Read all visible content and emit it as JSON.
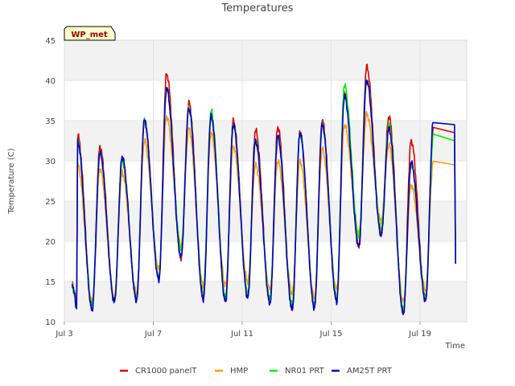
{
  "chart_data": {
    "type": "line",
    "title": "Temperatures",
    "xlabel": "Time",
    "ylabel": "Temperature (C)",
    "badge": "WP_met",
    "xlim": [
      3,
      21.1
    ],
    "ylim": [
      10,
      45
    ],
    "yticks": [
      10,
      15,
      20,
      25,
      30,
      35,
      40,
      45
    ],
    "xticks": [
      {
        "value": 3,
        "label": "Jul 3"
      },
      {
        "value": 7,
        "label": "Jul 7"
      },
      {
        "value": 11,
        "label": "Jul 11"
      },
      {
        "value": 15,
        "label": "Jul 15"
      },
      {
        "value": 19,
        "label": "Jul 19"
      }
    ],
    "series": [
      {
        "name": "CR1000 panelT",
        "color": "#dd0000",
        "max": [
          33.2,
          31.7,
          30.0,
          35.0,
          40.8,
          37.2,
          35.8,
          35.0,
          33.8,
          34.2,
          33.5,
          35.0,
          38.5,
          41.7,
          35.5,
          32.5,
          34.0
        ],
        "min": [
          11.8,
          12.6,
          12.8,
          15.5,
          18.0,
          13.0,
          12.7,
          13.3,
          12.5,
          11.8,
          12.0,
          12.8,
          19.5,
          21.0,
          11.2,
          12.8,
          17.0
        ]
      },
      {
        "name": "HMP",
        "color": "#ff9900",
        "max": [
          29.5,
          29.0,
          28.5,
          32.5,
          35.5,
          34.0,
          33.5,
          31.8,
          29.5,
          30.0,
          30.0,
          31.5,
          34.5,
          35.8,
          32.0,
          27.0,
          30.0
        ],
        "min": [
          12.5,
          13.0,
          13.5,
          16.5,
          19.5,
          14.5,
          14.5,
          15.0,
          14.0,
          13.5,
          13.0,
          14.0,
          21.0,
          22.5,
          12.5,
          14.0,
          18.0
        ]
      },
      {
        "name": "NR01 PRT",
        "color": "#00ee00",
        "max": [
          32.5,
          31.0,
          30.0,
          35.0,
          39.0,
          36.5,
          36.2,
          34.5,
          32.5,
          33.0,
          33.2,
          34.5,
          39.4,
          40.0,
          34.5,
          29.5,
          33.0
        ],
        "min": [
          12.0,
          12.6,
          13.0,
          15.5,
          19.0,
          13.5,
          13.0,
          13.5,
          12.8,
          12.2,
          12.0,
          13.0,
          20.5,
          21.5,
          11.5,
          13.0,
          17.0
        ]
      },
      {
        "name": "AM25T PRT",
        "color": "#0000cc",
        "max": [
          32.3,
          31.0,
          30.5,
          35.0,
          39.0,
          36.5,
          35.5,
          34.5,
          32.5,
          33.0,
          33.5,
          34.5,
          38.0,
          40.0,
          34.0,
          29.8,
          35.0
        ],
        "min": [
          11.5,
          12.5,
          12.7,
          15.2,
          18.0,
          12.8,
          12.5,
          13.0,
          12.3,
          11.5,
          11.7,
          12.5,
          19.3,
          20.8,
          11.0,
          12.6,
          16.8
        ]
      }
    ]
  },
  "legend": {
    "items": [
      {
        "label": "CR1000 panelT",
        "color": "#dd0000"
      },
      {
        "label": "HMP",
        "color": "#ff9900"
      },
      {
        "label": "NR01 PRT",
        "color": "#00ee00"
      },
      {
        "label": "AM25T PRT",
        "color": "#0000cc"
      }
    ]
  }
}
